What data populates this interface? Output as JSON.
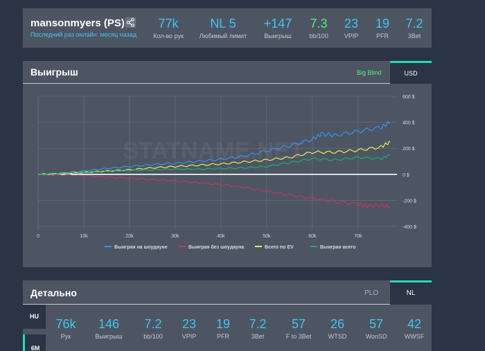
{
  "player": {
    "name": "mansonmyers (PS)",
    "last_online": "Последний раз онлайн: месяц назад",
    "stats": [
      {
        "value": "77k",
        "label": "Кол-во рук"
      },
      {
        "value": "NL 5",
        "label": "Любимый лимит"
      },
      {
        "value": "+147",
        "label": "Выигрыш"
      },
      {
        "value": "7.3",
        "label": "bb/100",
        "green": true
      },
      {
        "value": "23",
        "label": "VPIP"
      },
      {
        "value": "19",
        "label": "PFR"
      },
      {
        "value": "7.2",
        "label": "3Bet"
      }
    ]
  },
  "winnings": {
    "title": "Выигрыш",
    "tab_big_blind": "Big Blind",
    "tab_usd": "USD",
    "watermark": "STATNAME.NET"
  },
  "chart_data": {
    "type": "line",
    "x_ticks": [
      "0",
      "10k",
      "20k",
      "30k",
      "40k",
      "50k",
      "60k",
      "70k"
    ],
    "y_ticks": [
      "600 $",
      "400 $",
      "200 $",
      "0 $",
      "-200 $",
      "-400 $"
    ],
    "xlim": [
      0,
      77000
    ],
    "ylim": [
      -400,
      600
    ],
    "grid": true,
    "legend_position": "bottom",
    "series": [
      {
        "name": "Выиграя на шоудауне",
        "color": "#3b93e6",
        "x": [
          0,
          5000,
          10000,
          15000,
          20000,
          25000,
          30000,
          35000,
          40000,
          45000,
          50000,
          55000,
          60000,
          62000,
          65000,
          70000,
          75000,
          77000
        ],
        "y": [
          0,
          10,
          25,
          45,
          60,
          75,
          85,
          100,
          115,
          140,
          180,
          220,
          270,
          310,
          300,
          330,
          360,
          400
        ]
      },
      {
        "name": "Выиграя без шоудауна",
        "color": "#c4365e",
        "x": [
          0,
          5000,
          10000,
          15000,
          20000,
          25000,
          30000,
          35000,
          40000,
          45000,
          50000,
          55000,
          60000,
          65000,
          70000,
          72000,
          75000,
          77000
        ],
        "y": [
          0,
          -5,
          -10,
          -20,
          -30,
          -40,
          -50,
          -65,
          -80,
          -100,
          -130,
          -160,
          -185,
          -210,
          -230,
          -245,
          -235,
          -250
        ]
      },
      {
        "name": "Всего по EV",
        "color": "#e8ef54",
        "x": [
          0,
          5000,
          10000,
          15000,
          20000,
          25000,
          30000,
          35000,
          40000,
          45000,
          50000,
          55000,
          60000,
          65000,
          70000,
          75000,
          77000
        ],
        "y": [
          0,
          5,
          15,
          25,
          35,
          50,
          60,
          70,
          80,
          95,
          110,
          130,
          170,
          170,
          185,
          210,
          250
        ]
      },
      {
        "name": "Выиграя всего",
        "color": "#19b06f",
        "x": [
          0,
          5000,
          10000,
          15000,
          20000,
          25000,
          30000,
          35000,
          40000,
          45000,
          50000,
          55000,
          60000,
          65000,
          70000,
          75000,
          77000
        ],
        "y": [
          0,
          5,
          15,
          25,
          30,
          35,
          40,
          40,
          45,
          50,
          60,
          90,
          120,
          110,
          130,
          120,
          150
        ]
      }
    ]
  },
  "detail": {
    "title": "Детально",
    "tab_plo": "PLO",
    "tab_nl": "NL",
    "side_hu": "HU",
    "side_6m": "6M",
    "stats": [
      {
        "value": "76k",
        "label": "Рук"
      },
      {
        "value": "146",
        "label": "Выигрыш"
      },
      {
        "value": "7.2",
        "label": "bb/100"
      },
      {
        "value": "23",
        "label": "VPIP"
      },
      {
        "value": "19",
        "label": "PFR"
      },
      {
        "value": "7.2",
        "label": "3Bet"
      },
      {
        "value": "57",
        "label": "F to 3Bet"
      },
      {
        "value": "26",
        "label": "WTSD"
      },
      {
        "value": "57",
        "label": "WonSD"
      },
      {
        "value": "42",
        "label": "WWSF"
      }
    ]
  }
}
